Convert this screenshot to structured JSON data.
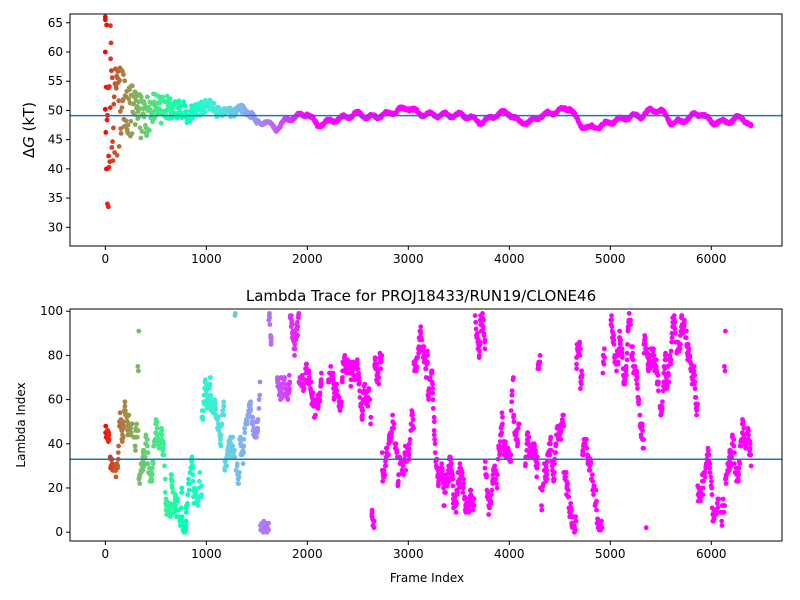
{
  "chart_data": [
    {
      "type": "scatter",
      "title": "",
      "xlabel": "",
      "ylabel": "ΔG (kT)",
      "ylabel_parts": {
        "delta": "Δ",
        "var": "G",
        "unit": " (kT)"
      },
      "xlim": [
        -350,
        6700
      ],
      "ylim": [
        26.8,
        66.5
      ],
      "xticks": [
        0,
        1000,
        2000,
        3000,
        4000,
        5000,
        6000
      ],
      "yticks": [
        30,
        35,
        40,
        45,
        50,
        55,
        60,
        65
      ],
      "reference_line": {
        "y": 49.1,
        "color": "#1f77b4"
      },
      "colormap": "rainbow (frame index: red at start → violet at end)",
      "n_frames": 6400,
      "trace_anchors": {
        "x": [
          0,
          100,
          200,
          300,
          400,
          500,
          600,
          700,
          800,
          900,
          1000,
          1100,
          1200,
          1300,
          1400,
          1500,
          1600,
          1700,
          1800,
          1900,
          2000,
          2100,
          2200,
          2300,
          2400,
          2500,
          2600,
          2700,
          2800,
          2900,
          3000,
          3100,
          3200,
          3300,
          3400,
          3500,
          3600,
          3700,
          3800,
          3900,
          4000,
          4100,
          4200,
          4300,
          4400,
          4500,
          4600,
          4700,
          4800,
          4900,
          5000,
          5100,
          5200,
          5300,
          5400,
          5500,
          5600,
          5700,
          5800,
          5900,
          6000,
          6100,
          6200,
          6300,
          6400
        ],
        "y": [
          50,
          50,
          50,
          49.5,
          49,
          51,
          50,
          50.5,
          49.5,
          50,
          51,
          50,
          49.5,
          50,
          50,
          48,
          48,
          46.8,
          48.5,
          49,
          49.5,
          47.5,
          48,
          48.5,
          49,
          49.5,
          48.8,
          49,
          49.5,
          50,
          50.5,
          49.5,
          49.3,
          49.2,
          49.2,
          49.2,
          49,
          48,
          48.5,
          49.5,
          49.5,
          48,
          48,
          49,
          49.5,
          50,
          50.5,
          47.5,
          47,
          47.3,
          48,
          48.5,
          49,
          49,
          50,
          50,
          48,
          48,
          49,
          49.5,
          48,
          48,
          48.2,
          49,
          47
        ]
      },
      "spread_envelope": {
        "x": [
          0,
          100,
          200,
          300,
          400,
          500,
          600,
          700,
          800,
          900,
          1000,
          1100,
          1200,
          1300,
          1400,
          1500
        ],
        "halfwidth": [
          16,
          9,
          6,
          4.5,
          3.5,
          2.5,
          2,
          1.6,
          1.4,
          1.2,
          1.1,
          0.9,
          0.8,
          0.7,
          0.6,
          0.5
        ]
      },
      "extreme_points": {
        "x": [
          0,
          0,
          10,
          20,
          30,
          0,
          50
        ],
        "y": [
          66,
          60,
          40,
          34,
          33.5,
          65.5,
          64.5
        ]
      }
    },
    {
      "type": "scatter",
      "title": "Lambda Trace for PROJ18433/RUN19/CLONE46",
      "xlabel": "Frame Index",
      "ylabel": "Lambda Index",
      "xlim": [
        -350,
        6700
      ],
      "ylim": [
        -4,
        101
      ],
      "xticks": [
        0,
        1000,
        2000,
        3000,
        4000,
        5000,
        6000
      ],
      "yticks": [
        0,
        20,
        40,
        60,
        80,
        100
      ],
      "reference_line": {
        "y": 33,
        "color": "#1f77b4"
      },
      "colormap": "rainbow (frame index: red at start → violet at end)",
      "n_frames": 6400,
      "value_range": [
        0,
        99
      ],
      "gap_intervals": [
        [
          1650,
          1700
        ],
        [
          2150,
          2200
        ],
        [
          4100,
          4150
        ],
        [
          4950,
          5000
        ]
      ]
    }
  ]
}
